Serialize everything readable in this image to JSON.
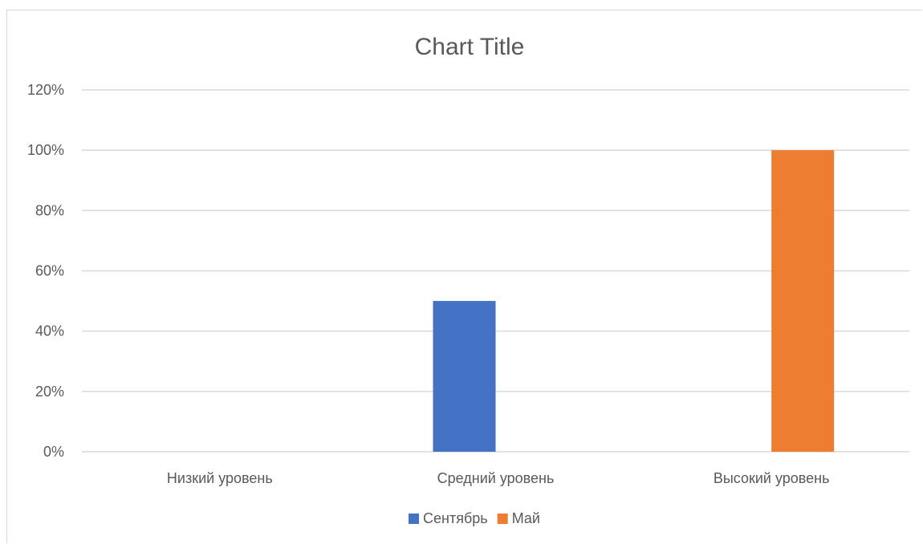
{
  "chart_data": {
    "type": "bar",
    "title": "Chart Title",
    "categories": [
      "Низкий уровень",
      "Средний уровень",
      "Высокий уровень"
    ],
    "series": [
      {
        "name": "Сентябрь",
        "color": "#4472c4",
        "values": [
          0,
          50,
          0
        ]
      },
      {
        "name": "Май",
        "color": "#ed7d31",
        "values": [
          0,
          0,
          100
        ]
      }
    ],
    "y_ticks": [
      "0%",
      "20%",
      "40%",
      "60%",
      "80%",
      "100%",
      "120%"
    ],
    "y_tick_values": [
      0,
      20,
      40,
      60,
      80,
      100,
      120
    ],
    "ylim": [
      0,
      120
    ],
    "grid": true,
    "legend_position": "bottom",
    "gridline_color": "#d9d9d9"
  }
}
